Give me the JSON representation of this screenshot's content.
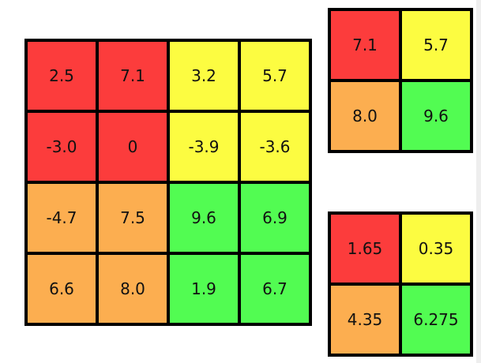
{
  "colors": {
    "red": "#fc3c3c",
    "yellow": "#fcfc41",
    "orange": "#fcae50",
    "green": "#52fc52"
  },
  "input_grid": {
    "rows": [
      [
        {
          "value": "2.5",
          "color": "red"
        },
        {
          "value": "7.1",
          "color": "red"
        },
        {
          "value": "3.2",
          "color": "yellow"
        },
        {
          "value": "5.7",
          "color": "yellow"
        }
      ],
      [
        {
          "value": "-3.0",
          "color": "red"
        },
        {
          "value": "0",
          "color": "red"
        },
        {
          "value": "-3.9",
          "color": "yellow"
        },
        {
          "value": "-3.6",
          "color": "yellow"
        }
      ],
      [
        {
          "value": "-4.7",
          "color": "orange"
        },
        {
          "value": "7.5",
          "color": "orange"
        },
        {
          "value": "9.6",
          "color": "green"
        },
        {
          "value": "6.9",
          "color": "green"
        }
      ],
      [
        {
          "value": "6.6",
          "color": "orange"
        },
        {
          "value": "8.0",
          "color": "orange"
        },
        {
          "value": "1.9",
          "color": "green"
        },
        {
          "value": "6.7",
          "color": "green"
        }
      ]
    ]
  },
  "max_pool_grid": {
    "rows": [
      [
        {
          "value": "7.1",
          "color": "red"
        },
        {
          "value": "5.7",
          "color": "yellow"
        }
      ],
      [
        {
          "value": "8.0",
          "color": "orange"
        },
        {
          "value": "9.6",
          "color": "green"
        }
      ]
    ]
  },
  "avg_pool_grid": {
    "rows": [
      [
        {
          "value": "1.65",
          "color": "red"
        },
        {
          "value": "0.35",
          "color": "yellow"
        }
      ],
      [
        {
          "value": "4.35",
          "color": "orange"
        },
        {
          "value": "6.275",
          "color": "green"
        }
      ]
    ]
  }
}
